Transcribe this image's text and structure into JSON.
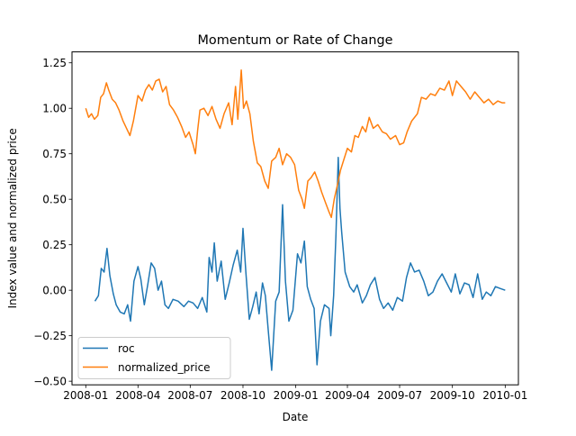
{
  "chart_data": {
    "type": "line",
    "title": "Momentum or Rate of Change",
    "xlabel": "Date",
    "ylabel": "Index value and normalized price",
    "xlim": [
      "2007-12-08",
      "2010-01-24"
    ],
    "ylim": [
      -0.52,
      1.31
    ],
    "x_ticks": [
      {
        "date": "2008-01-01",
        "label": "2008-01"
      },
      {
        "date": "2008-04-01",
        "label": "2008-04"
      },
      {
        "date": "2008-07-01",
        "label": "2008-07"
      },
      {
        "date": "2008-10-01",
        "label": "2008-10"
      },
      {
        "date": "2009-01-01",
        "label": "2009-01"
      },
      {
        "date": "2009-04-01",
        "label": "2009-04"
      },
      {
        "date": "2009-07-01",
        "label": "2009-07"
      },
      {
        "date": "2009-10-01",
        "label": "2009-10"
      },
      {
        "date": "2010-01-01",
        "label": "2010-01"
      }
    ],
    "y_ticks": [
      -0.5,
      -0.25,
      0.0,
      0.25,
      0.5,
      0.75,
      1.0,
      1.25
    ],
    "y_tick_labels": [
      "−0.50",
      "−0.25",
      "0.00",
      "0.25",
      "0.50",
      "0.75",
      "1.00",
      "1.25"
    ],
    "grid": false,
    "legend": "lower-left",
    "series": [
      {
        "name": "roc",
        "color": "#1f77b4",
        "points": [
          [
            "2008-01-17",
            -0.06
          ],
          [
            "2008-01-23",
            -0.03
          ],
          [
            "2008-01-28",
            0.12
          ],
          [
            "2008-02-02",
            0.1
          ],
          [
            "2008-02-07",
            0.23
          ],
          [
            "2008-02-12",
            0.08
          ],
          [
            "2008-02-18",
            -0.02
          ],
          [
            "2008-02-23",
            -0.08
          ],
          [
            "2008-03-01",
            -0.12
          ],
          [
            "2008-03-08",
            -0.13
          ],
          [
            "2008-03-14",
            -0.08
          ],
          [
            "2008-03-19",
            -0.17
          ],
          [
            "2008-03-25",
            0.05
          ],
          [
            "2008-04-01",
            0.13
          ],
          [
            "2008-04-06",
            0.06
          ],
          [
            "2008-04-12",
            -0.08
          ],
          [
            "2008-04-18",
            0.03
          ],
          [
            "2008-04-24",
            0.15
          ],
          [
            "2008-04-30",
            0.12
          ],
          [
            "2008-05-06",
            0.0
          ],
          [
            "2008-05-12",
            0.05
          ],
          [
            "2008-05-18",
            -0.08
          ],
          [
            "2008-05-24",
            -0.1
          ],
          [
            "2008-06-01",
            -0.05
          ],
          [
            "2008-06-10",
            -0.06
          ],
          [
            "2008-06-20",
            -0.09
          ],
          [
            "2008-06-28",
            -0.06
          ],
          [
            "2008-07-06",
            -0.07
          ],
          [
            "2008-07-14",
            -0.1
          ],
          [
            "2008-07-22",
            -0.04
          ],
          [
            "2008-07-30",
            -0.12
          ],
          [
            "2008-08-03",
            0.18
          ],
          [
            "2008-08-08",
            0.1
          ],
          [
            "2008-08-12",
            0.26
          ],
          [
            "2008-08-17",
            0.05
          ],
          [
            "2008-08-24",
            0.16
          ],
          [
            "2008-08-31",
            -0.05
          ],
          [
            "2008-09-07",
            0.04
          ],
          [
            "2008-09-14",
            0.14
          ],
          [
            "2008-09-21",
            0.22
          ],
          [
            "2008-09-27",
            0.1
          ],
          [
            "2008-10-01",
            0.34
          ],
          [
            "2008-10-06",
            0.1
          ],
          [
            "2008-10-12",
            -0.16
          ],
          [
            "2008-10-18",
            -0.09
          ],
          [
            "2008-10-24",
            -0.01
          ],
          [
            "2008-10-29",
            -0.13
          ],
          [
            "2008-11-04",
            0.04
          ],
          [
            "2008-11-09",
            -0.03
          ],
          [
            "2008-11-14",
            -0.22
          ],
          [
            "2008-11-20",
            -0.44
          ],
          [
            "2008-11-27",
            -0.06
          ],
          [
            "2008-12-03",
            -0.01
          ],
          [
            "2008-12-09",
            0.47
          ],
          [
            "2008-12-14",
            0.05
          ],
          [
            "2008-12-20",
            -0.17
          ],
          [
            "2008-12-27",
            -0.11
          ],
          [
            "2009-01-04",
            0.2
          ],
          [
            "2009-01-10",
            0.15
          ],
          [
            "2009-01-16",
            0.27
          ],
          [
            "2009-01-21",
            0.02
          ],
          [
            "2009-01-27",
            -0.05
          ],
          [
            "2009-02-02",
            -0.1
          ],
          [
            "2009-02-07",
            -0.41
          ],
          [
            "2009-02-13",
            -0.17
          ],
          [
            "2009-02-20",
            -0.08
          ],
          [
            "2009-02-28",
            -0.1
          ],
          [
            "2009-03-03",
            -0.25
          ],
          [
            "2009-03-08",
            -0.03
          ],
          [
            "2009-03-12",
            0.3
          ],
          [
            "2009-03-16",
            0.73
          ],
          [
            "2009-03-19",
            0.45
          ],
          [
            "2009-03-22",
            0.32
          ],
          [
            "2009-03-28",
            0.1
          ],
          [
            "2009-04-05",
            0.02
          ],
          [
            "2009-04-12",
            -0.01
          ],
          [
            "2009-04-18",
            0.03
          ],
          [
            "2009-04-27",
            -0.07
          ],
          [
            "2009-05-04",
            -0.03
          ],
          [
            "2009-05-11",
            0.03
          ],
          [
            "2009-05-19",
            0.07
          ],
          [
            "2009-05-27",
            -0.05
          ],
          [
            "2009-06-03",
            -0.1
          ],
          [
            "2009-06-11",
            -0.07
          ],
          [
            "2009-06-19",
            -0.11
          ],
          [
            "2009-06-27",
            -0.04
          ],
          [
            "2009-07-06",
            -0.06
          ],
          [
            "2009-07-13",
            0.07
          ],
          [
            "2009-07-20",
            0.15
          ],
          [
            "2009-07-27",
            0.1
          ],
          [
            "2009-08-04",
            0.11
          ],
          [
            "2009-08-12",
            0.05
          ],
          [
            "2009-08-20",
            -0.03
          ],
          [
            "2009-08-28",
            -0.01
          ],
          [
            "2009-09-05",
            0.05
          ],
          [
            "2009-09-13",
            0.09
          ],
          [
            "2009-09-21",
            0.04
          ],
          [
            "2009-09-29",
            -0.01
          ],
          [
            "2009-10-06",
            0.09
          ],
          [
            "2009-10-14",
            -0.02
          ],
          [
            "2009-10-22",
            0.04
          ],
          [
            "2009-10-30",
            0.03
          ],
          [
            "2009-11-06",
            -0.04
          ],
          [
            "2009-11-14",
            0.09
          ],
          [
            "2009-11-22",
            -0.05
          ],
          [
            "2009-11-29",
            -0.01
          ],
          [
            "2009-12-07",
            -0.03
          ],
          [
            "2009-12-15",
            0.02
          ],
          [
            "2009-12-23",
            0.01
          ],
          [
            "2010-01-01",
            0.0
          ]
        ]
      },
      {
        "name": "normalized_price",
        "color": "#ff7f0e",
        "points": [
          [
            "2008-01-01",
            1.0
          ],
          [
            "2008-01-06",
            0.95
          ],
          [
            "2008-01-11",
            0.97
          ],
          [
            "2008-01-16",
            0.94
          ],
          [
            "2008-01-22",
            0.96
          ],
          [
            "2008-01-27",
            1.06
          ],
          [
            "2008-02-01",
            1.08
          ],
          [
            "2008-02-06",
            1.14
          ],
          [
            "2008-02-10",
            1.1
          ],
          [
            "2008-02-16",
            1.05
          ],
          [
            "2008-02-22",
            1.03
          ],
          [
            "2008-02-28",
            0.99
          ],
          [
            "2008-03-06",
            0.93
          ],
          [
            "2008-03-12",
            0.89
          ],
          [
            "2008-03-18",
            0.85
          ],
          [
            "2008-03-24",
            0.93
          ],
          [
            "2008-04-01",
            1.07
          ],
          [
            "2008-04-08",
            1.04
          ],
          [
            "2008-04-14",
            1.1
          ],
          [
            "2008-04-20",
            1.13
          ],
          [
            "2008-04-26",
            1.1
          ],
          [
            "2008-05-02",
            1.15
          ],
          [
            "2008-05-08",
            1.16
          ],
          [
            "2008-05-14",
            1.09
          ],
          [
            "2008-05-20",
            1.12
          ],
          [
            "2008-05-26",
            1.02
          ],
          [
            "2008-06-02",
            0.99
          ],
          [
            "2008-06-09",
            0.95
          ],
          [
            "2008-06-16",
            0.9
          ],
          [
            "2008-06-23",
            0.84
          ],
          [
            "2008-06-29",
            0.87
          ],
          [
            "2008-07-06",
            0.8
          ],
          [
            "2008-07-10",
            0.75
          ],
          [
            "2008-07-14",
            0.88
          ],
          [
            "2008-07-18",
            0.99
          ],
          [
            "2008-07-25",
            1.0
          ],
          [
            "2008-08-01",
            0.96
          ],
          [
            "2008-08-08",
            1.01
          ],
          [
            "2008-08-15",
            0.94
          ],
          [
            "2008-08-22",
            0.89
          ],
          [
            "2008-08-29",
            0.97
          ],
          [
            "2008-09-06",
            1.03
          ],
          [
            "2008-09-12",
            0.91
          ],
          [
            "2008-09-18",
            1.12
          ],
          [
            "2008-09-22",
            0.94
          ],
          [
            "2008-09-28",
            1.21
          ],
          [
            "2008-10-02",
            1.0
          ],
          [
            "2008-10-07",
            1.04
          ],
          [
            "2008-10-13",
            0.97
          ],
          [
            "2008-10-19",
            0.82
          ],
          [
            "2008-10-26",
            0.7
          ],
          [
            "2008-11-01",
            0.68
          ],
          [
            "2008-11-08",
            0.6
          ],
          [
            "2008-11-14",
            0.56
          ],
          [
            "2008-11-20",
            0.71
          ],
          [
            "2008-11-27",
            0.73
          ],
          [
            "2008-12-03",
            0.78
          ],
          [
            "2008-12-09",
            0.69
          ],
          [
            "2008-12-16",
            0.75
          ],
          [
            "2008-12-23",
            0.73
          ],
          [
            "2008-12-30",
            0.69
          ],
          [
            "2009-01-06",
            0.55
          ],
          [
            "2009-01-12",
            0.5
          ],
          [
            "2009-01-16",
            0.45
          ],
          [
            "2009-01-22",
            0.6
          ],
          [
            "2009-01-28",
            0.62
          ],
          [
            "2009-02-03",
            0.65
          ],
          [
            "2009-02-09",
            0.6
          ],
          [
            "2009-02-15",
            0.54
          ],
          [
            "2009-02-22",
            0.48
          ],
          [
            "2009-02-28",
            0.43
          ],
          [
            "2009-03-04",
            0.4
          ],
          [
            "2009-03-09",
            0.5
          ],
          [
            "2009-03-14",
            0.57
          ],
          [
            "2009-03-20",
            0.66
          ],
          [
            "2009-03-26",
            0.72
          ],
          [
            "2009-04-01",
            0.78
          ],
          [
            "2009-04-08",
            0.76
          ],
          [
            "2009-04-14",
            0.85
          ],
          [
            "2009-04-20",
            0.84
          ],
          [
            "2009-04-27",
            0.9
          ],
          [
            "2009-05-03",
            0.87
          ],
          [
            "2009-05-09",
            0.95
          ],
          [
            "2009-05-16",
            0.89
          ],
          [
            "2009-05-24",
            0.91
          ],
          [
            "2009-06-01",
            0.87
          ],
          [
            "2009-06-08",
            0.86
          ],
          [
            "2009-06-15",
            0.83
          ],
          [
            "2009-06-24",
            0.85
          ],
          [
            "2009-07-01",
            0.8
          ],
          [
            "2009-07-08",
            0.81
          ],
          [
            "2009-07-14",
            0.87
          ],
          [
            "2009-07-22",
            0.93
          ],
          [
            "2009-08-01",
            0.97
          ],
          [
            "2009-08-08",
            1.06
          ],
          [
            "2009-08-16",
            1.05
          ],
          [
            "2009-08-24",
            1.08
          ],
          [
            "2009-09-01",
            1.07
          ],
          [
            "2009-09-09",
            1.11
          ],
          [
            "2009-09-17",
            1.1
          ],
          [
            "2009-09-25",
            1.15
          ],
          [
            "2009-10-01",
            1.07
          ],
          [
            "2009-10-08",
            1.15
          ],
          [
            "2009-10-16",
            1.12
          ],
          [
            "2009-10-24",
            1.09
          ],
          [
            "2009-11-01",
            1.05
          ],
          [
            "2009-11-09",
            1.09
          ],
          [
            "2009-11-17",
            1.06
          ],
          [
            "2009-11-25",
            1.03
          ],
          [
            "2009-12-03",
            1.05
          ],
          [
            "2009-12-11",
            1.02
          ],
          [
            "2009-12-19",
            1.04
          ],
          [
            "2009-12-27",
            1.03
          ],
          [
            "2010-01-01",
            1.03
          ]
        ]
      }
    ]
  }
}
